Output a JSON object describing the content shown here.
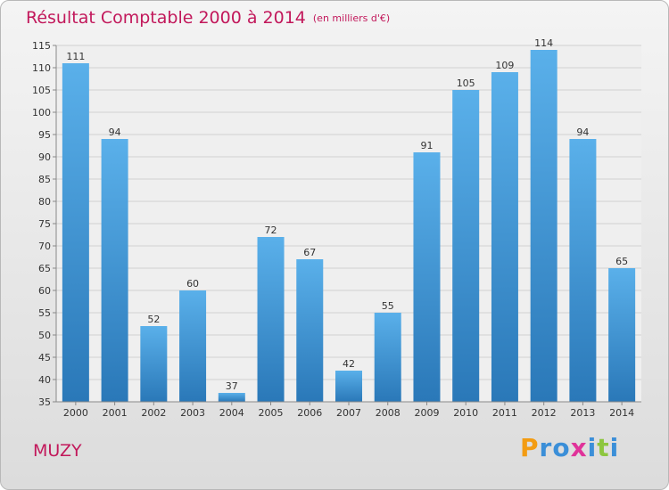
{
  "chart_data": {
    "type": "bar",
    "title": "Résultat Comptable 2000 à 2014",
    "subtitle": "(en milliers d'€)",
    "categories": [
      "2000",
      "2001",
      "2002",
      "2003",
      "2004",
      "2005",
      "2006",
      "2007",
      "2008",
      "2009",
      "2010",
      "2011",
      "2012",
      "2013",
      "2014"
    ],
    "values": [
      111,
      94,
      52,
      60,
      37,
      72,
      67,
      42,
      55,
      91,
      105,
      109,
      114,
      94,
      65
    ],
    "ylim": [
      35,
      115
    ],
    "yticks": [
      35,
      40,
      45,
      50,
      55,
      60,
      65,
      70,
      75,
      80,
      85,
      90,
      95,
      100,
      105,
      110,
      115
    ],
    "grid": true,
    "colors": {
      "bar_top": "#5ab0ea",
      "bar_bottom": "#2a78b8",
      "title": "#c2185b"
    }
  },
  "footer": {
    "commune": "MUZY",
    "logo_letters": [
      {
        "char": "P",
        "color": "#f39c12"
      },
      {
        "char": "r",
        "color": "#3b8fd8"
      },
      {
        "char": "o",
        "color": "#3b8fd8"
      },
      {
        "char": "x",
        "color": "#e0339a"
      },
      {
        "char": "i",
        "color": "#3b8fd8"
      },
      {
        "char": "t",
        "color": "#8dc63f"
      },
      {
        "char": "i",
        "color": "#3b8fd8"
      }
    ]
  }
}
